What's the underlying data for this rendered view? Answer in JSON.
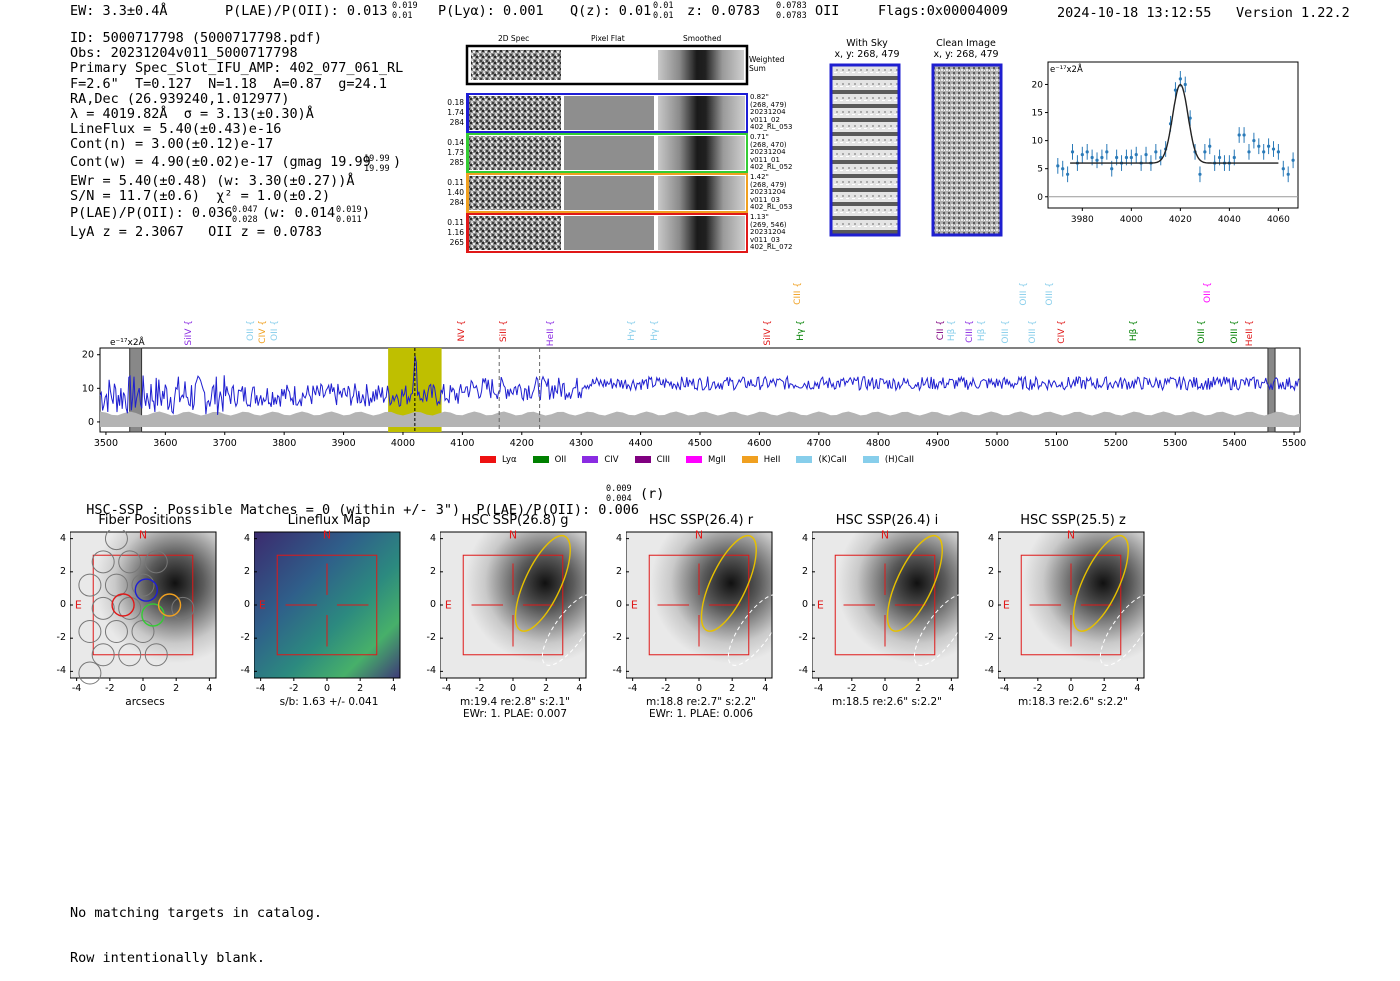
{
  "header": {
    "ew": "EW: 3.3±0.4Å",
    "plae": "P(LAE)/P(OII): 0.013",
    "plae_up": "0.019",
    "plae_dn": "0.01",
    "plya": "P(Lyα): 0.001",
    "qz": "Q(z): 0.01",
    "qz_up": "0.01",
    "qz_dn": "0.01",
    "z": "z: 0.0783",
    "z_up": "0.0783",
    "z_dn": "0.0783",
    "z_line": "OII",
    "flags": "Flags:0x00004009",
    "timestamp": "2024-10-18 13:12:55",
    "version": "Version 1.22.2"
  },
  "info": {
    "id": "ID: 5000717798 (5000717798.pdf)",
    "obs": "Obs: 20231204v011_5000717798",
    "primary": "Primary Spec_Slot_IFU_AMP: 402_077_061_RL",
    "fit": "F=2.6\"  T=0.127  N=1.18  A=0.87  g=24.1",
    "radec": "RA,Dec (26.939240,1.012977)",
    "lambda": "λ = 4019.82Å  σ = 3.13(±0.30)Å",
    "lineflux": "LineFlux = 5.40(±0.43)e-16",
    "contn": "Cont(n) = 3.00(±0.12)e-17",
    "contw": "Cont(w) = 4.90(±0.02)e-17 (gmag 19.99",
    "contw_up": "19.99",
    "contw_dn": "19.99",
    "contw_tail": ")",
    "ewr": "EWr = 5.40(±0.48) (w: 3.30(±0.27))Å",
    "sn": "S/N = 11.7(±0.6)  χ² = 1.0(±0.2)",
    "plae2": "P(LAE)/P(OII): 0.036",
    "plae2_up": "0.047",
    "plae2_dn": "0.028",
    "plae2_w": "(w: 0.014",
    "plae2_w_up": "0.019",
    "plae2_w_dn": "0.011",
    "plae2_tail": ")",
    "lyaz": "LyA z = 2.3067   OII z = 0.0783"
  },
  "cutouts": {
    "col_2d": "2D Spec",
    "col_flat": "Pixel Flat",
    "col_smooth": "Smoothed",
    "weighted": "Weighted Sum",
    "rows": [
      {
        "w": "0.18",
        "a": "1.74",
        "b": "284",
        "color": "#1d1dd6",
        "s1": "0.82\"",
        "s2": "(268, 479)",
        "s3": "20231204",
        "s4": "v011_02",
        "s5": "402_RL_053"
      },
      {
        "w": "0.14",
        "a": "1.73",
        "b": "285",
        "color": "#33cc33",
        "s1": "0.71\"",
        "s2": "(268, 470)",
        "s3": "20231204",
        "s4": "v011_01",
        "s5": "402_RL_052"
      },
      {
        "w": "0.11",
        "a": "1.40",
        "b": "284",
        "color": "#f0a020",
        "s1": "1.42\"",
        "s2": "(268, 479)",
        "s3": "20231204",
        "s4": "v011_03",
        "s5": "402_RL_053"
      },
      {
        "w": "0.11",
        "a": "1.16",
        "b": "265",
        "color": "#e01818",
        "s1": "1.13\"",
        "s2": "(269, 546)",
        "s3": "20231204",
        "s4": "v011_03",
        "s5": "402_RL_072"
      }
    ],
    "with_sky": "With Sky",
    "with_sky_xy": "x, y: 268, 479",
    "clean": "Clean Image",
    "clean_xy": "x, y: 268, 479"
  },
  "colors": {
    "blue": "#1f1fd0",
    "gray": "#b4b4b4",
    "olive": "#bfbf00",
    "fit_point": "#2a7ab8",
    "red": "#e01818",
    "yellow": "#e6c000"
  },
  "zoom_chart": {
    "type": "scatter",
    "ylabel": "e⁻¹⁷x2Å",
    "xlim": [
      3966,
      4068
    ],
    "ylim": [
      -2,
      24
    ],
    "xticks": [
      3980,
      4000,
      4020,
      4040,
      4060
    ],
    "yticks": [
      0,
      5,
      10,
      15,
      20
    ],
    "points": [
      [
        3970,
        5.5
      ],
      [
        3972,
        5
      ],
      [
        3974,
        4
      ],
      [
        3976,
        8
      ],
      [
        3978,
        6
      ],
      [
        3980,
        7.5
      ],
      [
        3982,
        8
      ],
      [
        3984,
        7
      ],
      [
        3986,
        6.5
      ],
      [
        3988,
        7
      ],
      [
        3990,
        8
      ],
      [
        3992,
        5
      ],
      [
        3994,
        7
      ],
      [
        3996,
        6
      ],
      [
        3998,
        7
      ],
      [
        4000,
        7
      ],
      [
        4002,
        7.5
      ],
      [
        4004,
        6
      ],
      [
        4006,
        7.5
      ],
      [
        4008,
        6
      ],
      [
        4010,
        8
      ],
      [
        4012,
        7
      ],
      [
        4014,
        8.5
      ],
      [
        4016,
        13
      ],
      [
        4018,
        19
      ],
      [
        4020,
        21
      ],
      [
        4022,
        20
      ],
      [
        4024,
        14
      ],
      [
        4026,
        8
      ],
      [
        4028,
        4
      ],
      [
        4030,
        8
      ],
      [
        4032,
        9
      ],
      [
        4034,
        6
      ],
      [
        4036,
        7
      ],
      [
        4038,
        6
      ],
      [
        4040,
        6
      ],
      [
        4042,
        7
      ],
      [
        4044,
        11
      ],
      [
        4046,
        11
      ],
      [
        4048,
        8
      ],
      [
        4050,
        10
      ],
      [
        4052,
        9
      ],
      [
        4054,
        8
      ],
      [
        4056,
        9
      ],
      [
        4058,
        8.5
      ],
      [
        4060,
        8
      ],
      [
        4062,
        5
      ],
      [
        4064,
        4
      ],
      [
        4066,
        6.5
      ]
    ],
    "fit": {
      "center": 4020,
      "sigma": 3.13,
      "amp": 14,
      "cont": 6
    }
  },
  "full_chart": {
    "type": "line",
    "ylabel": "e⁻¹⁷x2Å",
    "xlim": [
      3490,
      5510
    ],
    "ylim": [
      -3,
      22
    ],
    "xticks": [
      3500,
      3600,
      3700,
      3800,
      3900,
      4000,
      4100,
      4200,
      4300,
      4400,
      4500,
      4600,
      4700,
      4800,
      4900,
      5000,
      5100,
      5200,
      5300,
      5400,
      5500
    ],
    "yticks": [
      0,
      10,
      20
    ],
    "highlight_range": [
      3975,
      4065
    ],
    "line_center": 4020,
    "dashed_lines": [
      4162,
      4230
    ],
    "masked": [
      [
        3540,
        3560
      ],
      [
        5456,
        5468
      ]
    ],
    "lines": [
      {
        "label": "SiIV",
        "wave": 3640,
        "color": "#8a2be2",
        "lvl": "low"
      },
      {
        "label": "OII",
        "wave": 3745,
        "color": "#87ceeb",
        "lvl": "low"
      },
      {
        "label": "CIV",
        "wave": 3765,
        "color": "#f0a020",
        "lvl": "low"
      },
      {
        "label": "OII",
        "wave": 3785,
        "color": "#87ceeb",
        "lvl": "low"
      },
      {
        "label": "NV",
        "wave": 4100,
        "color": "#e01818",
        "lvl": "low"
      },
      {
        "label": "SiII",
        "wave": 4170,
        "color": "#e01818",
        "lvl": "low"
      },
      {
        "label": "HeII",
        "wave": 4250,
        "color": "#8a2be2",
        "lvl": "low"
      },
      {
        "label": "Hγ",
        "wave": 4385,
        "color": "#87ceeb",
        "lvl": "low"
      },
      {
        "label": "Hγ",
        "wave": 4425,
        "color": "#87ceeb",
        "lvl": "low"
      },
      {
        "label": "SiIV",
        "wave": 4615,
        "color": "#e01818",
        "lvl": "low"
      },
      {
        "label": "CIII",
        "wave": 4665,
        "color": "#f0a020",
        "lvl": "high"
      },
      {
        "label": "Hγ",
        "wave": 4670,
        "color": "#008000",
        "lvl": "low"
      },
      {
        "label": "CII",
        "wave": 4905,
        "color": "#800080",
        "lvl": "low"
      },
      {
        "label": "Hβ",
        "wave": 4925,
        "color": "#87ceeb",
        "lvl": "low"
      },
      {
        "label": "CIII",
        "wave": 4955,
        "color": "#8a2be2",
        "lvl": "low"
      },
      {
        "label": "Hβ",
        "wave": 4975,
        "color": "#87ceeb",
        "lvl": "low"
      },
      {
        "label": "OIII",
        "wave": 5015,
        "color": "#87ceeb",
        "lvl": "low"
      },
      {
        "label": "OIII",
        "wave": 5045,
        "color": "#87ceeb",
        "lvl": "high"
      },
      {
        "label": "OIII",
        "wave": 5060,
        "color": "#87ceeb",
        "lvl": "low"
      },
      {
        "label": "OIII",
        "wave": 5090,
        "color": "#87ceeb",
        "lvl": "high"
      },
      {
        "label": "CIV",
        "wave": 5110,
        "color": "#e01818",
        "lvl": "low"
      },
      {
        "label": "Hβ",
        "wave": 5230,
        "color": "#008000",
        "lvl": "low"
      },
      {
        "label": "OII",
        "wave": 5355,
        "color": "#ff00ff",
        "lvl": "high"
      },
      {
        "label": "OIII",
        "wave": 5345,
        "color": "#008000",
        "lvl": "low"
      },
      {
        "label": "OIII",
        "wave": 5400,
        "color": "#008000",
        "lvl": "low"
      },
      {
        "label": "HeII",
        "wave": 5425,
        "color": "#e01818",
        "lvl": "low"
      }
    ],
    "legend": [
      {
        "label": "Lyα",
        "color": "#ee1111"
      },
      {
        "label": "OII",
        "color": "#008000"
      },
      {
        "label": "CIV",
        "color": "#8a2be2"
      },
      {
        "label": "CIII",
        "color": "#800080"
      },
      {
        "label": "MgII",
        "color": "#ff00ff"
      },
      {
        "label": "HeII",
        "color": "#f0a020"
      },
      {
        "label": "(K)CaII",
        "color": "#87ceeb"
      },
      {
        "label": "(H)CaII",
        "color": "#87ceeb"
      }
    ]
  },
  "hsc": {
    "title": "HSC-SSP : Possible Matches = 0 (within +/- 3\")  P(LAE)/P(OII): 0.006",
    "title_up": "0.009",
    "title_dn": "0.004",
    "title_tail": "(r)",
    "panels": [
      {
        "title": "Fiber Positions",
        "cap1": "arcsecs",
        "cap2": ""
      },
      {
        "title": "Lineflux Map",
        "cap1": "s/b: 1.63 +/- 0.041",
        "cap2": ""
      },
      {
        "title": "HSC SSP(26.8) g",
        "cap1": "m:19.4  re:2.8\"  s:2.1\"",
        "cap2": "EWr: 1. PLAE: 0.007"
      },
      {
        "title": "HSC SSP(26.4) r",
        "cap1": "m:18.8  re:2.7\"  s:2.2\"",
        "cap2": "EWr: 1. PLAE: 0.006"
      },
      {
        "title": "HSC SSP(26.4) i",
        "cap1": "m:18.5  re:2.6\"  s:2.2\"",
        "cap2": ""
      },
      {
        "title": "HSC SSP(25.5) z",
        "cap1": "m:18.3  re:2.6\"  s:2.2\"",
        "cap2": ""
      }
    ],
    "axis_ticks": [
      "-4",
      "-2",
      "0",
      "2",
      "4"
    ],
    "north": "N",
    "east": "E"
  },
  "footer": {
    "line1": "No matching targets in catalog.",
    "line2": "Row intentionally blank."
  }
}
